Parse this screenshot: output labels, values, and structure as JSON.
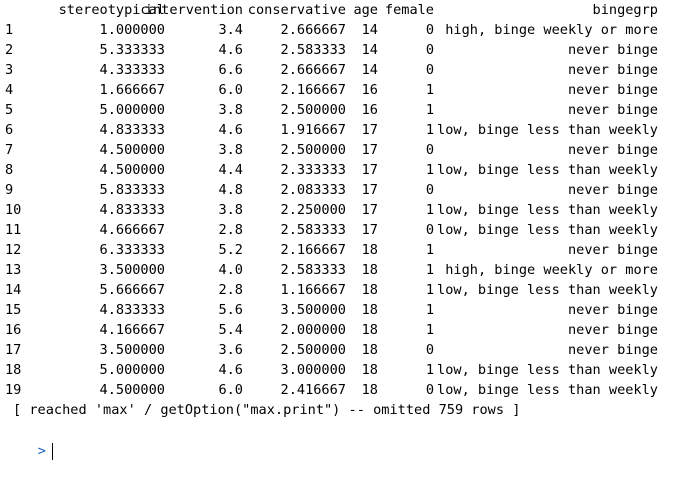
{
  "headers": {
    "stereotypical": "stereotypical",
    "intervention": "intervention",
    "conservative": "conservative",
    "age": "age",
    "female": "female",
    "bingegrp": "bingegrp"
  },
  "rows": [
    {
      "idx": "1",
      "stereotypical": "1.000000",
      "intervention": "3.4",
      "conservative": "2.666667",
      "age": "14",
      "female": "0",
      "bingegrp": "high, binge weekly or more"
    },
    {
      "idx": "2",
      "stereotypical": "5.333333",
      "intervention": "4.6",
      "conservative": "2.583333",
      "age": "14",
      "female": "0",
      "bingegrp": "never binge"
    },
    {
      "idx": "3",
      "stereotypical": "4.333333",
      "intervention": "6.6",
      "conservative": "2.666667",
      "age": "14",
      "female": "0",
      "bingegrp": "never binge"
    },
    {
      "idx": "4",
      "stereotypical": "1.666667",
      "intervention": "6.0",
      "conservative": "2.166667",
      "age": "16",
      "female": "1",
      "bingegrp": "never binge"
    },
    {
      "idx": "5",
      "stereotypical": "5.000000",
      "intervention": "3.8",
      "conservative": "2.500000",
      "age": "16",
      "female": "1",
      "bingegrp": "never binge"
    },
    {
      "idx": "6",
      "stereotypical": "4.833333",
      "intervention": "4.6",
      "conservative": "1.916667",
      "age": "17",
      "female": "1",
      "bingegrp": "low, binge less than weekly"
    },
    {
      "idx": "7",
      "stereotypical": "4.500000",
      "intervention": "3.8",
      "conservative": "2.500000",
      "age": "17",
      "female": "0",
      "bingegrp": "never binge"
    },
    {
      "idx": "8",
      "stereotypical": "4.500000",
      "intervention": "4.4",
      "conservative": "2.333333",
      "age": "17",
      "female": "1",
      "bingegrp": "low, binge less than weekly"
    },
    {
      "idx": "9",
      "stereotypical": "5.833333",
      "intervention": "4.8",
      "conservative": "2.083333",
      "age": "17",
      "female": "0",
      "bingegrp": "never binge"
    },
    {
      "idx": "10",
      "stereotypical": "4.833333",
      "intervention": "3.8",
      "conservative": "2.250000",
      "age": "17",
      "female": "1",
      "bingegrp": "low, binge less than weekly"
    },
    {
      "idx": "11",
      "stereotypical": "4.666667",
      "intervention": "2.8",
      "conservative": "2.583333",
      "age": "17",
      "female": "0",
      "bingegrp": "low, binge less than weekly"
    },
    {
      "idx": "12",
      "stereotypical": "6.333333",
      "intervention": "5.2",
      "conservative": "2.166667",
      "age": "18",
      "female": "1",
      "bingegrp": "never binge"
    },
    {
      "idx": "13",
      "stereotypical": "3.500000",
      "intervention": "4.0",
      "conservative": "2.583333",
      "age": "18",
      "female": "1",
      "bingegrp": "high, binge weekly or more"
    },
    {
      "idx": "14",
      "stereotypical": "5.666667",
      "intervention": "2.8",
      "conservative": "1.166667",
      "age": "18",
      "female": "1",
      "bingegrp": "low, binge less than weekly"
    },
    {
      "idx": "15",
      "stereotypical": "4.833333",
      "intervention": "5.6",
      "conservative": "3.500000",
      "age": "18",
      "female": "1",
      "bingegrp": "never binge"
    },
    {
      "idx": "16",
      "stereotypical": "4.166667",
      "intervention": "5.4",
      "conservative": "2.000000",
      "age": "18",
      "female": "1",
      "bingegrp": "never binge"
    },
    {
      "idx": "17",
      "stereotypical": "3.500000",
      "intervention": "3.6",
      "conservative": "2.500000",
      "age": "18",
      "female": "0",
      "bingegrp": "never binge"
    },
    {
      "idx": "18",
      "stereotypical": "5.000000",
      "intervention": "4.6",
      "conservative": "3.000000",
      "age": "18",
      "female": "1",
      "bingegrp": "low, binge less than weekly"
    },
    {
      "idx": "19",
      "stereotypical": "4.500000",
      "intervention": "6.0",
      "conservative": "2.416667",
      "age": "18",
      "female": "0",
      "bingegrp": "low, binge less than weekly"
    }
  ],
  "footer": "[ reached 'max' / getOption(\"max.print\") -- omitted 759 rows ]",
  "prompt": ">",
  "colors": {
    "prompt": "#1f5fbf",
    "text": "#000000",
    "background": "#ffffff"
  }
}
